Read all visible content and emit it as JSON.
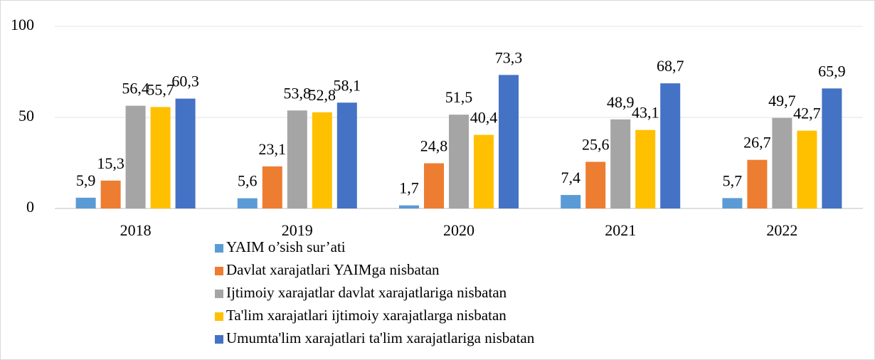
{
  "chart_data": {
    "type": "bar",
    "categories": [
      "2018",
      "2019",
      "2020",
      "2021",
      "2022"
    ],
    "series": [
      {
        "name": "YAIM o’sish sur’ati",
        "color": "#5b9bd5",
        "values": [
          5.9,
          5.6,
          1.7,
          7.4,
          5.7
        ],
        "value_labels": [
          "5,9",
          "5,6",
          "1,7",
          "7,4",
          "5,7"
        ]
      },
      {
        "name": "Davlat xarajatlari YAIMga nisbatan",
        "color": "#ed7d31",
        "values": [
          15.3,
          23.1,
          24.8,
          25.6,
          26.7
        ],
        "value_labels": [
          "15,3",
          "23,1",
          "24,8",
          "25,6",
          "26,7"
        ]
      },
      {
        "name": "Ijtimoiy xarajatlar davlat xarajatlariga nisbatan",
        "color": "#a5a5a5",
        "values": [
          56.4,
          53.8,
          51.5,
          48.9,
          49.7
        ],
        "value_labels": [
          "56,4",
          "53,8",
          "51,5",
          "48,9",
          "49,7"
        ]
      },
      {
        "name": "Ta'lim xarajatlari ijtimoiy xarajatlarga nisbatan",
        "color": "#ffc000",
        "values": [
          55.7,
          52.8,
          40.4,
          43.1,
          42.7
        ],
        "value_labels": [
          "55,7",
          "52,8",
          "40,4",
          "43,1",
          "42,7"
        ]
      },
      {
        "name": "Umumta'lim xarajatlari ta'lim xarajatlariga nisbatan",
        "color": "#4472c4",
        "values": [
          60.3,
          58.1,
          73.3,
          68.7,
          65.9
        ],
        "value_labels": [
          "60,3",
          "58,1",
          "73,3",
          "68,7",
          "65,9"
        ]
      }
    ],
    "ylim": [
      0,
      100
    ],
    "yticks": [
      0,
      50,
      100
    ],
    "grid": true,
    "legend": "bottom"
  }
}
